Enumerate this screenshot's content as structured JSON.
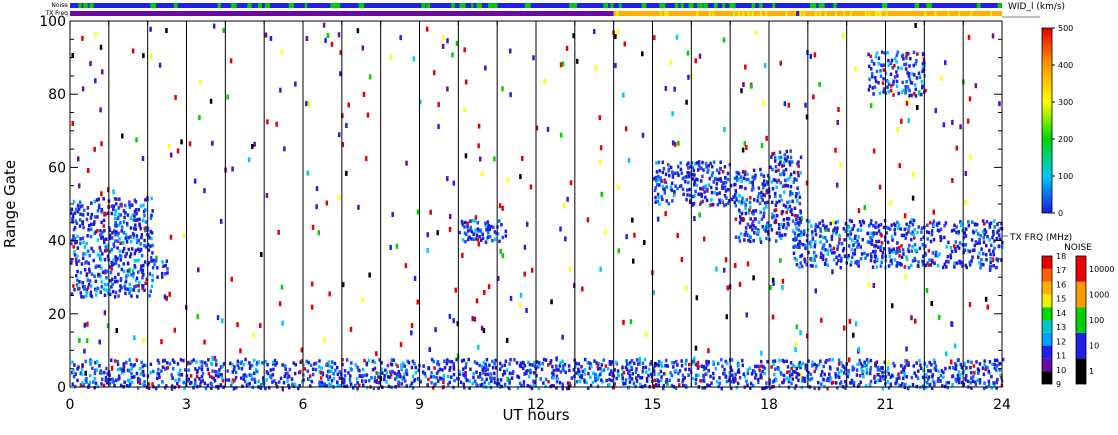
{
  "panel": {
    "noise_strip_label": "Noise",
    "freq_strip_label": "TX Freq"
  },
  "chart_data": {
    "type": "heatmap",
    "xlabel": "UT hours",
    "ylabel": "Range Gate",
    "xlim": [
      0,
      24
    ],
    "ylim": [
      0,
      100
    ],
    "x_ticks": [
      "0",
      "3",
      "6",
      "9",
      "12",
      "15",
      "18",
      "21",
      "24"
    ],
    "y_ticks": [
      "0",
      "20",
      "40",
      "60",
      "80",
      "100"
    ],
    "grid": "vertical lines every hour",
    "echo_regions": [
      {
        "x": [
          0.0,
          2.1
        ],
        "y": [
          25,
          52
        ],
        "level_kms": 60
      },
      {
        "x": [
          2.1,
          2.5
        ],
        "y": [
          30,
          36
        ],
        "level_kms": 60
      },
      {
        "x": [
          10.0,
          11.2
        ],
        "y": [
          40,
          46
        ],
        "level_kms": 50
      },
      {
        "x": [
          15.0,
          17.1
        ],
        "y": [
          50,
          62
        ],
        "level_kms": 60
      },
      {
        "x": [
          17.1,
          18.0
        ],
        "y": [
          40,
          60
        ],
        "level_kms": 50
      },
      {
        "x": [
          18.0,
          18.8
        ],
        "y": [
          40,
          65
        ],
        "level_kms": 50
      },
      {
        "x": [
          18.6,
          24.0
        ],
        "y": [
          33,
          46
        ],
        "level_kms": 40
      },
      {
        "x": [
          20.5,
          22.0
        ],
        "y": [
          80,
          92
        ],
        "level_kms": 70
      },
      {
        "x": [
          0.0,
          24.0
        ],
        "y": [
          0,
          8
        ],
        "level_kms": 50
      }
    ],
    "noise_strip": "blue with scattered green intervals",
    "tx_freq_strip": {
      "0-14": "purple (11 MHz)",
      "14-24": "orange (15 MHz)"
    },
    "colorbars": [
      {
        "title": "WID_l (km/s)",
        "ticks": [
          "0",
          "100",
          "200",
          "300",
          "400",
          "500"
        ],
        "colors": [
          "#1a1adc",
          "#00c8ff",
          "#00d800",
          "#ffff00",
          "#ff9a00",
          "#e80000"
        ]
      },
      {
        "title": "TX FRQ (MHz)",
        "ticks": [
          "9",
          "10",
          "11",
          "12",
          "13",
          "14",
          "15",
          "16",
          "17",
          "18"
        ],
        "colors": [
          "#000000",
          "#6a0aa0",
          "#2020e8",
          "#00a0ff",
          "#00c8c8",
          "#00dc00",
          "#f0f000",
          "#ffb000",
          "#ff6000",
          "#e00000"
        ]
      },
      {
        "title": "NOISE",
        "ticks": [
          "1",
          "10",
          "100",
          "1000",
          "10000"
        ],
        "colors": [
          "#000000",
          "#2020e8",
          "#00d000",
          "#ff9a00",
          "#e80000"
        ]
      }
    ]
  }
}
